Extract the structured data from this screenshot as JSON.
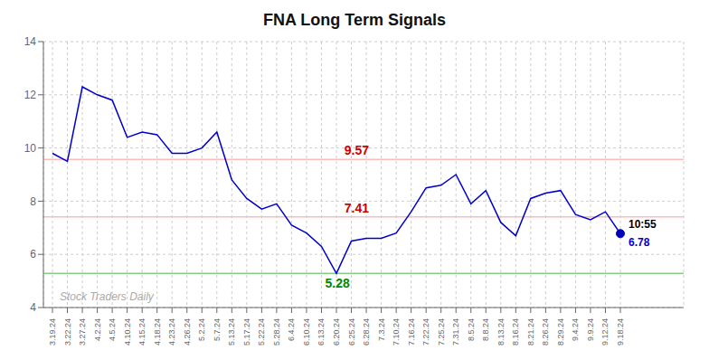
{
  "chart_data": {
    "type": "line",
    "title": "FNA Long Term Signals",
    "categories": [
      "3.19.24",
      "3.22.24",
      "3.27.24",
      "4.2.24",
      "4.5.24",
      "4.10.24",
      "4.15.24",
      "4.18.24",
      "4.23.24",
      "4.26.24",
      "5.2.24",
      "5.7.24",
      "5.13.24",
      "5.17.24",
      "5.22.24",
      "5.28.24",
      "6.4.24",
      "6.10.24",
      "6.13.24",
      "6.20.24",
      "6.25.24",
      "6.28.24",
      "7.3.24",
      "7.10.24",
      "7.16.24",
      "7.22.24",
      "7.25.24",
      "7.31.24",
      "8.5.24",
      "8.8.24",
      "8.13.24",
      "8.16.24",
      "8.21.24",
      "8.26.24",
      "8.29.24",
      "9.4.24",
      "9.9.24",
      "9.12.24",
      "9.18.24"
    ],
    "values": [
      9.8,
      9.5,
      12.3,
      12.0,
      11.8,
      10.4,
      10.6,
      10.5,
      9.8,
      9.8,
      10.0,
      10.6,
      8.8,
      8.1,
      7.7,
      7.9,
      7.1,
      6.8,
      6.3,
      5.28,
      6.5,
      6.6,
      6.6,
      6.8,
      7.6,
      8.5,
      8.6,
      9.0,
      7.9,
      8.4,
      7.2,
      6.7,
      8.1,
      8.3,
      8.4,
      7.5,
      7.3,
      7.6,
      6.78
    ],
    "color": "#0000cc",
    "last_point_color": "#0000bb",
    "last_point_labels": [
      {
        "text": "10:55",
        "color": "#000000"
      },
      {
        "text": "6.78",
        "color": "#0000cc"
      }
    ],
    "reference_lines": [
      {
        "value": 9.57,
        "color": "#ffbbbb",
        "label": "9.57",
        "label_color": "#cc0000"
      },
      {
        "value": 7.41,
        "color": "#ffbbbb",
        "label": "7.41",
        "label_color": "#cc0000"
      },
      {
        "value": 5.28,
        "color": "#88cc88",
        "label": "5.28",
        "label_color": "#008800"
      }
    ],
    "watermark": {
      "text": "Stock Traders Daily",
      "color": "#aaaaaa"
    },
    "ylim": [
      4,
      14
    ],
    "yticks": [
      4,
      6,
      8,
      10,
      12,
      14
    ],
    "grid": true
  }
}
